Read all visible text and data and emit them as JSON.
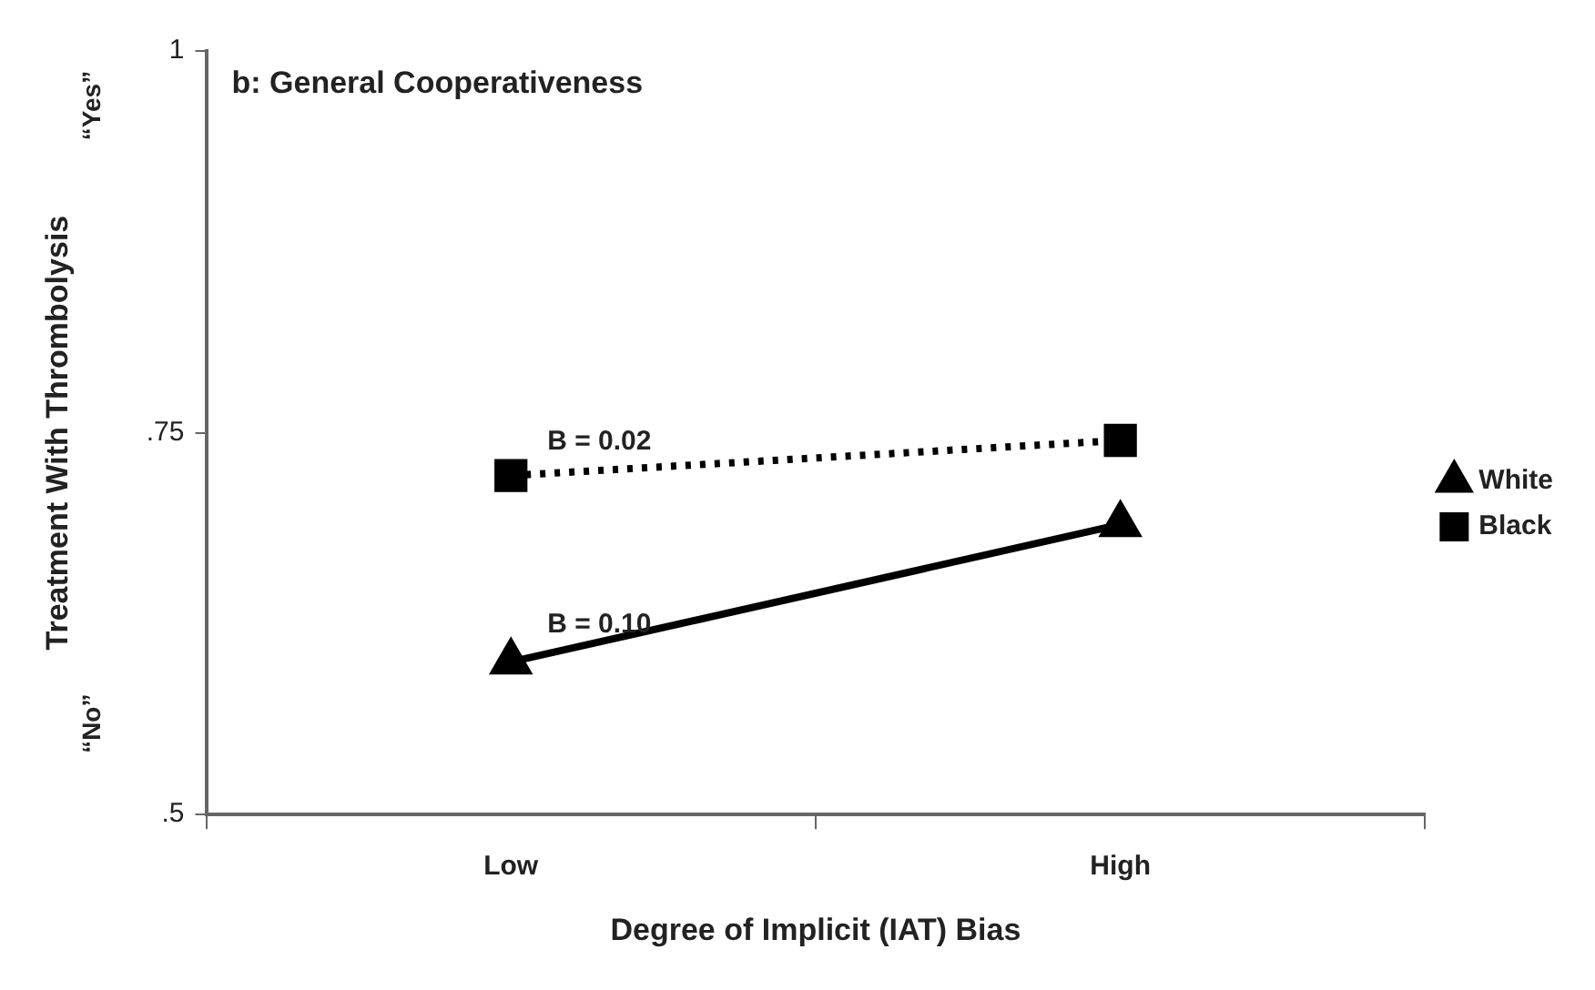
{
  "chart_data": {
    "type": "line",
    "title": "b: General Cooperativeness",
    "xlabel": "Degree of Implicit (IAT) Bias",
    "ylabel": "Treatment With Thrombolysis",
    "categories": [
      "Low",
      "High"
    ],
    "series": [
      {
        "name": "White",
        "color": "#000000",
        "values": [
          0.6,
          0.69
        ],
        "marker": "triangle",
        "line_style": "solid"
      },
      {
        "name": "Black",
        "color": "#000000",
        "values": [
          0.722,
          0.745
        ],
        "marker": "square",
        "line_style": "dotted"
      }
    ],
    "ylim": [
      0.5,
      1
    ],
    "yticks": [
      {
        "value": 0.5,
        "label": ".5"
      },
      {
        "value": 0.75,
        "label": ".75"
      },
      1
    ],
    "annotations": [
      "“Yes”",
      "“No”",
      {
        "text": "B = 0.02",
        "x": "Low",
        "y": 0.735
      },
      {
        "text": "B = 0.10",
        "x": "Low",
        "y": 0.615
      }
    ],
    "grid": false,
    "legend": "right"
  }
}
